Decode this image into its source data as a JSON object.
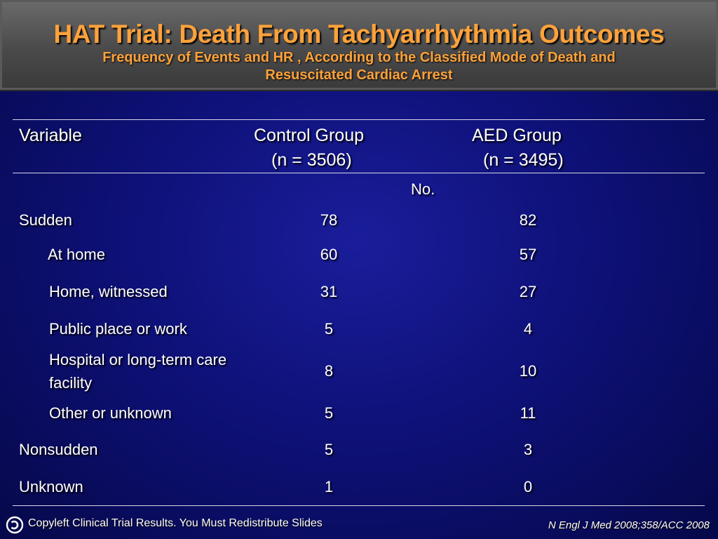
{
  "slide": {
    "title": "HAT Trial: Death From Tachyarrhythmia Outcomes",
    "subtitle_line1": "Frequency of Events and HR , According to the Classified Mode of Death and",
    "subtitle_line2": "Resuscitated Cardiac Arrest"
  },
  "table": {
    "headers": {
      "variable": "Variable",
      "control_line1": "Control Group",
      "control_line2": "(n = 3506)",
      "aed_line1": "AED Group",
      "aed_line2": "(n = 3495)",
      "units": "No."
    },
    "rows": [
      {
        "label": "Sudden",
        "control": "78",
        "aed": "82"
      },
      {
        "label": "At home",
        "control": "60",
        "aed": "57"
      },
      {
        "label": "Home, witnessed",
        "control": "31",
        "aed": "27"
      },
      {
        "label": "Public place or work",
        "control": "5",
        "aed": "4"
      },
      {
        "label_line1": "Hospital or long-term care",
        "label_line2": "facility",
        "control": "8",
        "aed": "10"
      },
      {
        "label": "Other or unknown",
        "control": "5",
        "aed": "11"
      },
      {
        "label": "Nonsudden",
        "control": "5",
        "aed": "3"
      },
      {
        "label": "Unknown",
        "control": "1",
        "aed": "0"
      }
    ]
  },
  "footer": {
    "copyleft": "Copyleft Clinical Trial Results. You Must Redistribute Slides",
    "citation": "N Engl J Med 2008;358/ACC 2008",
    "icon": "copyleft-icon"
  },
  "colors": {
    "title": "#ffa23a",
    "background": "#0e1178",
    "header_bar": "#4a4a4a",
    "text": "#ffffff"
  }
}
